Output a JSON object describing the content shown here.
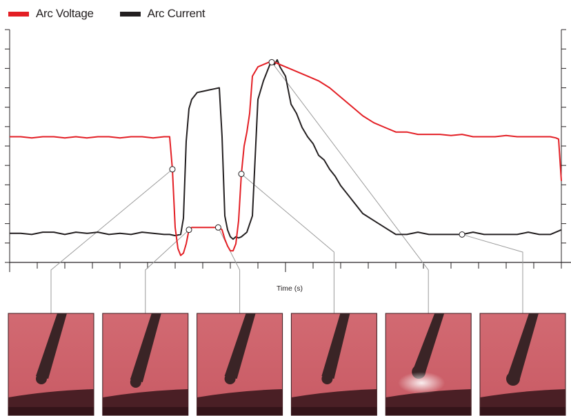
{
  "chart_data": {
    "type": "line",
    "title": "",
    "xlabel": "Time (s)",
    "ylabel": "",
    "xlim": [
      0,
      100
    ],
    "ylim": [
      0,
      100
    ],
    "grid": false,
    "legend_position": "top-left",
    "series": [
      {
        "name": "Arc Voltage",
        "color": "#e31e24",
        "x": [
          0,
          2,
          4,
          6,
          8,
          10,
          12,
          14,
          16,
          18,
          20,
          22,
          24,
          26,
          28,
          29,
          29.5,
          30,
          30.5,
          31,
          31.5,
          32,
          32.5,
          33,
          33.5,
          34,
          36,
          38,
          38.5,
          39,
          39.5,
          40,
          40.5,
          41,
          41.5,
          42,
          42.5,
          43,
          43.5,
          44,
          45,
          46,
          47,
          48,
          49,
          50,
          52,
          54,
          56,
          58,
          60,
          62,
          64,
          66,
          68,
          70,
          72,
          74,
          76,
          78,
          80,
          82,
          84,
          86,
          88,
          90,
          92,
          94,
          96,
          98,
          99,
          99.5,
          100
        ],
        "y": [
          54,
          54,
          53.5,
          54,
          54,
          53.5,
          54,
          53.5,
          54,
          54,
          53.5,
          54,
          54,
          53.5,
          54,
          54,
          40,
          15,
          6,
          3,
          4,
          8,
          14,
          15,
          15,
          15,
          15,
          15,
          14,
          10,
          7,
          5,
          5,
          8,
          18,
          38,
          50,
          56,
          64,
          80,
          84,
          85,
          86,
          86,
          85,
          84,
          82,
          80,
          78,
          75,
          71,
          67,
          63,
          60,
          58,
          56,
          56,
          55,
          55,
          55,
          54.5,
          55,
          54,
          54,
          54,
          54.5,
          54,
          54,
          54,
          54,
          53.5,
          53,
          35
        ]
      },
      {
        "name": "Arc Current",
        "color": "#231f20",
        "x": [
          0,
          2,
          4,
          6,
          8,
          10,
          12,
          14,
          16,
          18,
          20,
          22,
          24,
          26,
          28,
          29,
          30,
          31,
          31.5,
          32,
          32.5,
          33,
          34,
          35,
          36,
          37,
          38,
          38.5,
          39,
          39.5,
          40,
          40.5,
          41,
          41.5,
          42,
          43,
          44,
          45,
          46,
          47,
          47.5,
          48,
          48.5,
          49,
          50,
          51,
          52,
          53,
          54,
          55,
          56,
          57,
          58,
          59,
          60,
          62,
          64,
          66,
          68,
          70,
          72,
          74,
          76,
          78,
          80,
          82,
          84,
          86,
          88,
          90,
          92,
          94,
          96,
          98,
          100
        ],
        "y": [
          12.5,
          12.5,
          12,
          13,
          13,
          12,
          13,
          12.5,
          13,
          12,
          12.5,
          12,
          13,
          12.5,
          12,
          12,
          11.5,
          12,
          19,
          52,
          66,
          70,
          73,
          73.5,
          74,
          74.5,
          75,
          54,
          20,
          14,
          11,
          10,
          11,
          10.5,
          11,
          13,
          20,
          70,
          78,
          84,
          87,
          85,
          87,
          84,
          80,
          68,
          64,
          58,
          54,
          51,
          46,
          44,
          40,
          37,
          33,
          27,
          21,
          18,
          15,
          12,
          12,
          13,
          12,
          12,
          12,
          12,
          13,
          12,
          12,
          12,
          12,
          13,
          12,
          12,
          14
        ]
      }
    ],
    "markers": [
      {
        "series": "Arc Voltage",
        "x": 29.5
      },
      {
        "series": "Arc Voltage",
        "x": 32.5
      },
      {
        "series": "Arc Voltage",
        "x": 37.8
      },
      {
        "series": "Arc Voltage",
        "x": 42
      },
      {
        "series": "Arc Voltage",
        "x": 47.5
      },
      {
        "series": "Arc Current",
        "x": 82
      }
    ],
    "photo_count": 6
  },
  "legend": {
    "voltage_label": "Arc Voltage",
    "current_label": "Arc Current"
  }
}
